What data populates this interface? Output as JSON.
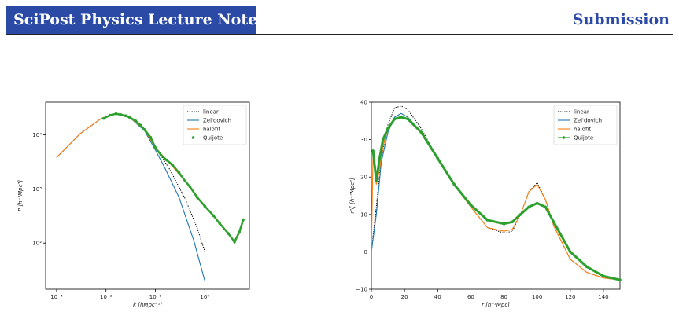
{
  "header": {
    "journal": "SciPost Physics Lecture Notes",
    "section": "Submission",
    "band_color": "#2b4aa6"
  },
  "colors": {
    "linear": "#000000",
    "zeldovich": "#1f77b4",
    "halofit": "#ff7f0e",
    "quijote": "#2ca02c"
  },
  "chart_data": [
    {
      "type": "line",
      "xlabel": "k [hMpc⁻¹]",
      "ylabel": "P [h⁻³Mpc³]",
      "xscale": "log",
      "yscale": "log",
      "xlim": [
        0.0006,
        8
      ],
      "ylim": [
        14,
        40000
      ],
      "xticks": [
        {
          "v": 0.001,
          "label": "10⁻³"
        },
        {
          "v": 0.01,
          "label": "10⁻²"
        },
        {
          "v": 0.1,
          "label": "10⁻¹"
        },
        {
          "v": 1,
          "label": "10⁰"
        }
      ],
      "yticks": [
        {
          "v": 100,
          "label": "10²"
        },
        {
          "v": 1000,
          "label": "10³"
        },
        {
          "v": 10000,
          "label": "10⁴"
        }
      ],
      "legend": "top-right",
      "series": [
        {
          "name": "linear",
          "style": "dotted",
          "x": [
            0.001,
            0.003,
            0.008,
            0.015,
            0.03,
            0.06,
            0.1,
            0.2,
            0.4,
            0.7,
            1.0
          ],
          "y": [
            3800,
            10500,
            20000,
            24500,
            21000,
            12000,
            6000,
            2200,
            660,
            190,
            70
          ]
        },
        {
          "name": "Zel'dovich",
          "style": "line",
          "x": [
            0.001,
            0.003,
            0.008,
            0.015,
            0.03,
            0.06,
            0.1,
            0.15,
            0.3,
            0.6,
            1.0
          ],
          "y": [
            3800,
            10500,
            20000,
            24500,
            21000,
            12000,
            5200,
            2600,
            700,
            110,
            20
          ]
        },
        {
          "name": "halofit",
          "style": "line",
          "x": [
            0.001,
            0.003,
            0.008,
            0.015,
            0.03,
            0.06,
            0.1,
            0.2,
            0.5,
            1,
            2,
            4,
            5,
            6
          ],
          "y": [
            3800,
            10500,
            20000,
            24500,
            21000,
            12500,
            5800,
            2900,
            1100,
            480,
            230,
            105,
            150,
            260
          ]
        },
        {
          "name": "Quijote",
          "style": "markers",
          "x": [
            0.009,
            0.012,
            0.016,
            0.02,
            0.025,
            0.03,
            0.04,
            0.05,
            0.06,
            0.08,
            0.1,
            0.13,
            0.17,
            0.22,
            0.3,
            0.4,
            0.5,
            0.7,
            1,
            1.5,
            2,
            3,
            4,
            5,
            6
          ],
          "y": [
            20000,
            23000,
            24500,
            23500,
            22500,
            21000,
            18000,
            15000,
            12500,
            9000,
            5800,
            4200,
            3400,
            2800,
            2000,
            1400,
            1100,
            700,
            480,
            320,
            230,
            150,
            105,
            160,
            270
          ]
        }
      ]
    },
    {
      "type": "line",
      "xlabel": "r [h⁻¹Mpc]",
      "ylabel": "r²ξ [h⁻²Mpc²]",
      "xlim": [
        0,
        150
      ],
      "ylim": [
        -10,
        40
      ],
      "xticks": [
        {
          "v": 0,
          "label": "0"
        },
        {
          "v": 20,
          "label": "20"
        },
        {
          "v": 40,
          "label": "40"
        },
        {
          "v": 60,
          "label": "60"
        },
        {
          "v": 80,
          "label": "80"
        },
        {
          "v": 100,
          "label": "100"
        },
        {
          "v": 120,
          "label": "120"
        },
        {
          "v": 140,
          "label": "140"
        }
      ],
      "yticks": [
        {
          "v": -10,
          "label": "−10"
        },
        {
          "v": 0,
          "label": "0"
        },
        {
          "v": 10,
          "label": "10"
        },
        {
          "v": 20,
          "label": "20"
        },
        {
          "v": 30,
          "label": "30"
        },
        {
          "v": 40,
          "label": "40"
        }
      ],
      "legend": "top-right",
      "series": [
        {
          "name": "linear",
          "style": "dotted",
          "x": [
            0,
            3,
            6,
            10,
            14,
            18,
            22,
            30,
            40,
            50,
            60,
            70,
            80,
            85,
            90,
            95,
            100,
            105,
            110,
            120,
            130,
            140,
            150
          ],
          "y": [
            0,
            12,
            25,
            34,
            38.5,
            39,
            38,
            33,
            25,
            18,
            12,
            6.5,
            5,
            5.5,
            10,
            16,
            18.5,
            14,
            7,
            -2,
            -5.5,
            -7,
            -7.5
          ]
        },
        {
          "name": "Zel'dovich",
          "style": "line",
          "x": [
            0,
            3,
            6,
            10,
            14,
            18,
            22,
            30,
            40,
            50,
            60,
            70,
            80,
            85,
            90,
            95,
            100,
            105,
            110,
            120,
            130,
            140,
            150
          ],
          "y": [
            0,
            10,
            24,
            32,
            36,
            37,
            36,
            32,
            25,
            18,
            12.5,
            8.5,
            7.5,
            8,
            10,
            12,
            13,
            12,
            8,
            0,
            -4,
            -6.5,
            -7.5
          ]
        },
        {
          "name": "halofit",
          "style": "line",
          "x": [
            0,
            1,
            2,
            3,
            5,
            7,
            10,
            14,
            18,
            22,
            30,
            40,
            50,
            60,
            70,
            80,
            85,
            90,
            95,
            100,
            105,
            110,
            120,
            130,
            140,
            150
          ],
          "y": [
            0,
            26,
            22,
            18,
            22,
            28,
            33,
            35.5,
            36,
            35.5,
            32,
            25,
            18,
            12,
            6.5,
            5.5,
            6,
            10,
            16,
            18,
            14,
            7,
            -2,
            -5.5,
            -7,
            -7.5
          ]
        },
        {
          "name": "Quijote",
          "style": "markers",
          "x": [
            1,
            3,
            5,
            7,
            10,
            14,
            18,
            22,
            30,
            40,
            50,
            60,
            70,
            80,
            85,
            90,
            95,
            100,
            105,
            110,
            120,
            130,
            140,
            150
          ],
          "y": [
            27,
            19,
            25,
            30,
            33,
            35.5,
            36,
            35.5,
            32,
            25,
            18,
            12.5,
            8.5,
            7.5,
            8,
            10,
            12,
            13,
            12,
            8,
            0,
            -4,
            -6.5,
            -7.5
          ]
        }
      ]
    }
  ]
}
